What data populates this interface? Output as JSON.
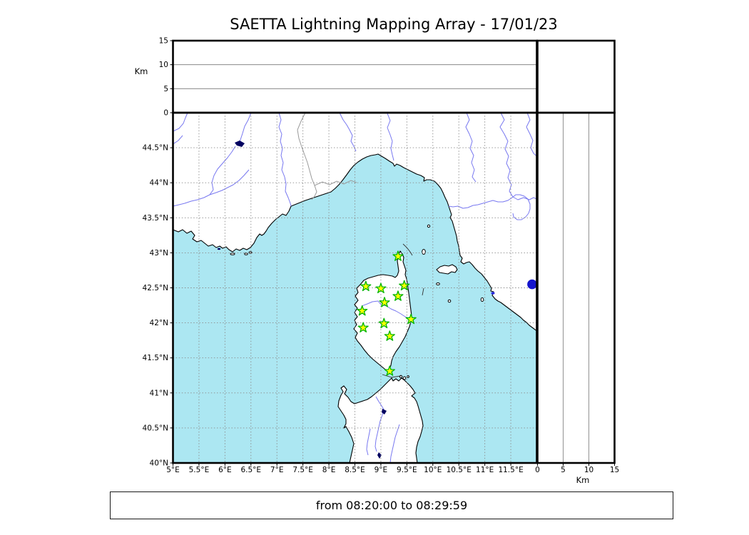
{
  "title": "SAETTA Lightning Mapping Array - 17/01/23",
  "time_range": "from 08:20:00 to 08:29:59",
  "chart_data": {
    "type": "scatter",
    "description": "Lightning Mapping Array geographic display: central lon/lat map of Corsica region with LMA station markers (green stars) and one blue point marker; altitude top panel (alt vs longitude) and altitude right panel (alt vs latitude) are empty for this time interval.",
    "grid": "dashed 0.5 degree graticule",
    "map": {
      "lon_range": [
        5,
        12
      ],
      "lat_range": [
        40,
        45
      ],
      "lon_ticks": [
        5,
        5.5,
        6,
        6.5,
        7,
        7.5,
        8,
        8.5,
        9,
        9.5,
        10,
        10.5,
        11,
        11.5
      ],
      "lon_tick_labels": [
        "5°E",
        "5.5°E",
        "6°E",
        "6.5°E",
        "7°E",
        "7.5°E",
        "8°E",
        "8.5°E",
        "9°E",
        "9.5°E",
        "10°E",
        "10.5°E",
        "11°E",
        "11.5°E"
      ],
      "lat_ticks": [
        40,
        40.5,
        41,
        41.5,
        42,
        42.5,
        43,
        43.5,
        44,
        44.5
      ],
      "lat_tick_labels": [
        "40°N",
        "40.5°N",
        "41°N",
        "41.5°N",
        "42°N",
        "42.5°N",
        "43°N",
        "43.5°N",
        "44°N",
        "44.5°N"
      ],
      "stations": [
        {
          "lon": 9.33,
          "lat": 42.95
        },
        {
          "lon": 8.71,
          "lat": 42.52
        },
        {
          "lon": 9.0,
          "lat": 42.49
        },
        {
          "lon": 9.45,
          "lat": 42.53
        },
        {
          "lon": 9.33,
          "lat": 42.38
        },
        {
          "lon": 9.07,
          "lat": 42.29
        },
        {
          "lon": 8.64,
          "lat": 42.17
        },
        {
          "lon": 9.58,
          "lat": 42.05
        },
        {
          "lon": 9.06,
          "lat": 41.99
        },
        {
          "lon": 8.66,
          "lat": 41.93
        },
        {
          "lon": 9.17,
          "lat": 41.81
        },
        {
          "lon": 9.17,
          "lat": 41.31
        }
      ],
      "point_markers": [
        {
          "lon": 11.91,
          "lat": 42.55,
          "shape": "circle",
          "color": "#1414cc"
        }
      ]
    },
    "altitude_panels": {
      "unit": "Km",
      "range": [
        0,
        15
      ],
      "ticks": [
        0,
        5,
        10,
        15
      ],
      "tick_labels": [
        "0",
        "5",
        "10",
        "15"
      ],
      "top_panel": "altitude vs longitude (empty)",
      "right_panel": "altitude vs latitude (empty)"
    }
  },
  "colors": {
    "sea": "#ace7f2",
    "land": "#ffffff",
    "coast": "#000000",
    "river": "#7878f0",
    "border_admin": "#9a9a9a",
    "graticule": "#8c8c8c",
    "lake": "#000060",
    "lagoon": "#2a2ae0",
    "station_fill": "#ffff00",
    "station_edge": "#00b400",
    "source_dot": "#1414cc"
  }
}
